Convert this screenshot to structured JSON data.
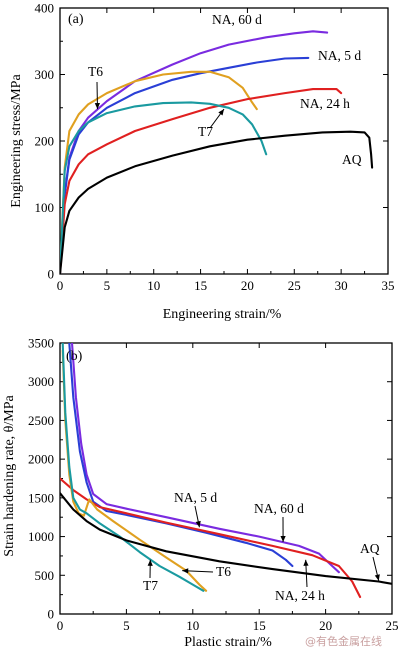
{
  "chart_data": [
    {
      "id": "a",
      "type": "line",
      "panel_label": "(a)",
      "xlabel": "Engineering strain/%",
      "ylabel": "Engineering stress/MPa",
      "xlim": [
        0,
        35
      ],
      "ylim": [
        0,
        400
      ],
      "xticks": [
        0,
        5,
        10,
        15,
        20,
        25,
        30,
        35
      ],
      "yticks": [
        0,
        100,
        200,
        300,
        400
      ],
      "series": [
        {
          "name": "NA, 60 d",
          "color": "#7a2be0",
          "points": [
            [
              0,
              0
            ],
            [
              0.5,
              120
            ],
            [
              1,
              175
            ],
            [
              2,
              215
            ],
            [
              3,
              235
            ],
            [
              5,
              260
            ],
            [
              8,
              290
            ],
            [
              12,
              315
            ],
            [
              15,
              332
            ],
            [
              18,
              345
            ],
            [
              22,
              356
            ],
            [
              25,
              362
            ],
            [
              27,
              365
            ],
            [
              28.5,
              363
            ]
          ]
        },
        {
          "name": "NA, 5 d",
          "color": "#2a3fd6",
          "points": [
            [
              0,
              0
            ],
            [
              0.5,
              120
            ],
            [
              1,
              172
            ],
            [
              2,
              210
            ],
            [
              3,
              228
            ],
            [
              5,
              250
            ],
            [
              8,
              272
            ],
            [
              12,
              292
            ],
            [
              15,
              302
            ],
            [
              18,
              310
            ],
            [
              21,
              318
            ],
            [
              24,
              324
            ],
            [
              26.5,
              325
            ]
          ]
        },
        {
          "name": "T6",
          "color": "#e0a020",
          "points": [
            [
              0,
              0
            ],
            [
              0.5,
              160
            ],
            [
              1,
              215
            ],
            [
              2,
              240
            ],
            [
              3,
              255
            ],
            [
              5,
              272
            ],
            [
              8,
              290
            ],
            [
              11,
              300
            ],
            [
              14,
              304
            ],
            [
              16,
              304
            ],
            [
              18,
              296
            ],
            [
              19.5,
              280
            ],
            [
              20.5,
              258
            ],
            [
              21,
              248
            ]
          ]
        },
        {
          "name": "NA, 24 h",
          "color": "#e02020",
          "points": [
            [
              0,
              0
            ],
            [
              0.5,
              105
            ],
            [
              1,
              140
            ],
            [
              2,
              165
            ],
            [
              3,
              180
            ],
            [
              5,
              195
            ],
            [
              8,
              215
            ],
            [
              12,
              233
            ],
            [
              16,
              250
            ],
            [
              20,
              263
            ],
            [
              24,
              272
            ],
            [
              27,
              278
            ],
            [
              29.5,
              278
            ],
            [
              30,
              272
            ]
          ]
        },
        {
          "name": "T7",
          "color": "#1a9aa0",
          "points": [
            [
              0,
              0
            ],
            [
              0.5,
              155
            ],
            [
              1,
              192
            ],
            [
              2,
              215
            ],
            [
              3,
              228
            ],
            [
              5,
              242
            ],
            [
              8,
              252
            ],
            [
              11,
              257
            ],
            [
              14,
              258
            ],
            [
              16,
              256
            ],
            [
              18,
              250
            ],
            [
              19.5,
              240
            ],
            [
              20.5,
              225
            ],
            [
              21.5,
              200
            ],
            [
              22,
              180
            ]
          ]
        },
        {
          "name": "AQ",
          "color": "#000000",
          "points": [
            [
              0,
              0
            ],
            [
              0.5,
              70
            ],
            [
              1,
              95
            ],
            [
              2,
              115
            ],
            [
              3,
              128
            ],
            [
              5,
              145
            ],
            [
              8,
              162
            ],
            [
              12,
              178
            ],
            [
              16,
              192
            ],
            [
              20,
              202
            ],
            [
              24,
              208
            ],
            [
              28,
              213
            ],
            [
              31,
              214
            ],
            [
              32.5,
              213
            ],
            [
              33,
              205
            ],
            [
              33.2,
              180
            ],
            [
              33.3,
              160
            ]
          ]
        }
      ],
      "annotations": [
        {
          "text": "NA, 60 d",
          "target": "NA, 60 d"
        },
        {
          "text": "NA, 5 d",
          "target": "NA, 5 d"
        },
        {
          "text": "NA, 24 h",
          "target": "NA, 24 h"
        },
        {
          "text": "T6",
          "target": "T6",
          "arrow_to": [
            4,
            248
          ]
        },
        {
          "text": "T7",
          "target": "T7",
          "arrow_to": [
            17.5,
            248
          ]
        },
        {
          "text": "AQ",
          "target": "AQ"
        }
      ]
    },
    {
      "id": "b",
      "type": "line",
      "panel_label": "(b)",
      "xlabel": "Plastic strain/%",
      "ylabel": "Strain hardening rate, θ/MPa",
      "xlim": [
        0,
        25
      ],
      "ylim": [
        0,
        3500
      ],
      "xticks": [
        0,
        5,
        10,
        15,
        20,
        25
      ],
      "yticks": [
        0,
        500,
        1000,
        1500,
        2000,
        2500,
        3000,
        3500
      ],
      "series": [
        {
          "name": "NA, 60 d",
          "color": "#7a2be0",
          "points": [
            [
              0.9,
              3500
            ],
            [
              1.2,
              2800
            ],
            [
              1.6,
              2200
            ],
            [
              2,
              1800
            ],
            [
              2.5,
              1550
            ],
            [
              3.5,
              1420
            ],
            [
              5,
              1360
            ],
            [
              8,
              1250
            ],
            [
              12,
              1100
            ],
            [
              15,
              1000
            ],
            [
              18,
              880
            ],
            [
              19.5,
              780
            ],
            [
              20.5,
              620
            ],
            [
              21,
              540
            ]
          ]
        },
        {
          "name": "NA, 5 d",
          "color": "#2a3fd6",
          "points": [
            [
              0.7,
              3500
            ],
            [
              1,
              2800
            ],
            [
              1.5,
              2100
            ],
            [
              2,
              1700
            ],
            [
              2.5,
              1450
            ],
            [
              3.5,
              1330
            ],
            [
              5,
              1280
            ],
            [
              8,
              1170
            ],
            [
              11,
              1050
            ],
            [
              14,
              920
            ],
            [
              16,
              820
            ],
            [
              17,
              700
            ],
            [
              17.5,
              620
            ]
          ]
        },
        {
          "name": "NA, 24 h",
          "color": "#e02020",
          "points": [
            [
              0,
              1750
            ],
            [
              1,
              1600
            ],
            [
              2,
              1480
            ],
            [
              3,
              1380
            ],
            [
              5,
              1300
            ],
            [
              8,
              1180
            ],
            [
              12,
              1030
            ],
            [
              16,
              880
            ],
            [
              19,
              760
            ],
            [
              21,
              620
            ],
            [
              22,
              420
            ],
            [
              22.6,
              220
            ]
          ]
        },
        {
          "name": "T6",
          "color": "#e0a020",
          "points": [
            [
              0.2,
              3400
            ],
            [
              0.4,
              2500
            ],
            [
              0.7,
              1800
            ],
            [
              1,
              1450
            ],
            [
              1.4,
              1300
            ],
            [
              1.8,
              1270
            ],
            [
              2.2,
              1480
            ],
            [
              2.8,
              1350
            ],
            [
              4,
              1200
            ],
            [
              6,
              960
            ],
            [
              8,
              730
            ],
            [
              9.5,
              560
            ],
            [
              10.5,
              380
            ],
            [
              11,
              300
            ]
          ]
        },
        {
          "name": "T7",
          "color": "#1a9aa0",
          "points": [
            [
              0.2,
              3500
            ],
            [
              0.4,
              2600
            ],
            [
              0.7,
              1900
            ],
            [
              1,
              1500
            ],
            [
              1.5,
              1350
            ],
            [
              2,
              1300
            ],
            [
              3,
              1170
            ],
            [
              4.5,
              1000
            ],
            [
              6,
              800
            ],
            [
              7.5,
              620
            ],
            [
              9,
              480
            ],
            [
              10,
              380
            ],
            [
              10.8,
              300
            ]
          ]
        },
        {
          "name": "AQ",
          "color": "#000000",
          "points": [
            [
              0,
              1560
            ],
            [
              1,
              1350
            ],
            [
              2,
              1200
            ],
            [
              3,
              1090
            ],
            [
              5,
              950
            ],
            [
              8,
              810
            ],
            [
              12,
              680
            ],
            [
              16,
              580
            ],
            [
              20,
              490
            ],
            [
              24,
              420
            ],
            [
              25,
              390
            ]
          ]
        }
      ],
      "annotations": [
        {
          "text": "NA, 5 d",
          "target": "NA, 5 d",
          "arrow_to": [
            10.5,
            1120
          ]
        },
        {
          "text": "NA, 60 d",
          "target": "NA, 60 d",
          "arrow_to": [
            16.8,
            930
          ]
        },
        {
          "text": "NA, 24 h",
          "target": "NA, 24 h",
          "arrow_to": [
            18.5,
            700
          ]
        },
        {
          "text": "AQ",
          "target": "AQ",
          "arrow_to": [
            24,
            430
          ]
        },
        {
          "text": "T7",
          "target": "T7",
          "arrow_to": [
            6.8,
            700
          ]
        },
        {
          "text": "T6",
          "target": "T6",
          "arrow_to": [
            9.2,
            560
          ]
        }
      ]
    }
  ],
  "watermark": "@有色金属在线"
}
